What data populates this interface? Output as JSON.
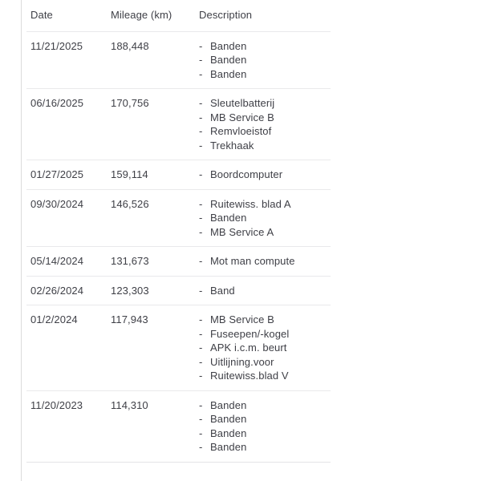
{
  "table": {
    "columns": [
      {
        "label": "Date"
      },
      {
        "label": "Mileage (km)"
      },
      {
        "label": "Description"
      }
    ],
    "bullet": "-",
    "rows": [
      {
        "date": "11/21/2025",
        "mileage": "188,448",
        "description": [
          "Banden",
          "Banden",
          "Banden"
        ]
      },
      {
        "date": "06/16/2025",
        "mileage": "170,756",
        "description": [
          "Sleutelbatterij",
          "MB Service B",
          "Remvloeistof",
          "Trekhaak"
        ]
      },
      {
        "date": "01/27/2025",
        "mileage": "159,114",
        "description": [
          "Boordcomputer"
        ]
      },
      {
        "date": "09/30/2024",
        "mileage": "146,526",
        "description": [
          "Ruitewiss. blad A",
          "Banden",
          "MB Service A"
        ]
      },
      {
        "date": "05/14/2024",
        "mileage": "131,673",
        "description": [
          "Mot man compute"
        ]
      },
      {
        "date": "02/26/2024",
        "mileage": "123,303",
        "description": [
          "Band"
        ]
      },
      {
        "date": "01/2/2024",
        "mileage": "117,943",
        "description": [
          "MB Service B",
          "Fuseepen/-kogel",
          "APK i.c.m. beurt",
          "Uitlijning.voor",
          "Ruitewiss.blad V"
        ]
      },
      {
        "date": "11/20/2023",
        "mileage": "114,310",
        "description": [
          "Banden",
          "Banden",
          "Banden",
          "Banden"
        ]
      }
    ]
  },
  "colors": {
    "text": "#3e3f46",
    "separator": "#e9e9eb",
    "side_rule": "#dcdcdc",
    "background": "#ffffff"
  }
}
